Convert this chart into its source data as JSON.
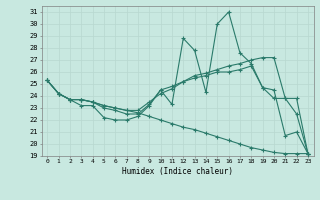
{
  "xlabel": "Humidex (Indice chaleur)",
  "ylabel": "",
  "xlim": [
    -0.5,
    23.5
  ],
  "ylim": [
    19,
    31.5
  ],
  "yticks": [
    19,
    20,
    21,
    22,
    23,
    24,
    25,
    26,
    27,
    28,
    29,
    30,
    31
  ],
  "xticks": [
    0,
    1,
    2,
    3,
    4,
    5,
    6,
    7,
    8,
    9,
    10,
    11,
    12,
    13,
    14,
    15,
    16,
    17,
    18,
    19,
    20,
    21,
    22,
    23
  ],
  "background_color": "#c8e8e0",
  "grid_color": "#b8d8d0",
  "line_color": "#2a7a6a",
  "lines": [
    {
      "x": [
        0,
        1,
        2,
        3,
        4,
        5,
        6,
        7,
        8,
        9,
        10,
        11,
        12,
        13,
        14,
        15,
        16,
        17,
        18,
        19,
        20,
        21,
        22,
        23
      ],
      "y": [
        25.3,
        24.2,
        23.7,
        23.2,
        23.2,
        22.2,
        22.0,
        22.0,
        22.3,
        23.2,
        24.5,
        23.3,
        28.8,
        27.8,
        24.3,
        30.0,
        31.0,
        27.6,
        26.7,
        24.7,
        24.5,
        20.7,
        21.0,
        19.2
      ]
    },
    {
      "x": [
        0,
        1,
        2,
        3,
        4,
        5,
        6,
        7,
        8,
        9,
        10,
        11,
        12,
        13,
        14,
        15,
        16,
        17,
        18,
        19,
        20,
        21,
        22,
        23
      ],
      "y": [
        25.3,
        24.2,
        23.7,
        23.7,
        23.5,
        23.2,
        23.0,
        22.8,
        22.8,
        23.5,
        24.2,
        24.6,
        25.2,
        25.7,
        25.9,
        26.2,
        26.5,
        26.7,
        27.0,
        27.2,
        27.2,
        23.8,
        22.5,
        19.2
      ]
    },
    {
      "x": [
        0,
        1,
        2,
        3,
        4,
        5,
        6,
        7,
        8,
        9,
        10,
        11,
        12,
        13,
        14,
        15,
        16,
        17,
        18,
        19,
        20,
        21,
        22,
        23
      ],
      "y": [
        25.3,
        24.2,
        23.7,
        23.7,
        23.5,
        23.2,
        23.0,
        22.8,
        22.6,
        22.3,
        22.0,
        21.7,
        21.4,
        21.2,
        20.9,
        20.6,
        20.3,
        20.0,
        19.7,
        19.5,
        19.3,
        19.2,
        19.2,
        19.2
      ]
    },
    {
      "x": [
        0,
        1,
        2,
        3,
        4,
        5,
        6,
        7,
        8,
        9,
        10,
        11,
        12,
        13,
        14,
        15,
        16,
        17,
        18,
        19,
        20,
        21,
        22,
        23
      ],
      "y": [
        25.3,
        24.2,
        23.7,
        23.7,
        23.5,
        23.0,
        22.8,
        22.5,
        22.5,
        23.3,
        24.5,
        24.8,
        25.2,
        25.5,
        25.7,
        26.0,
        26.0,
        26.2,
        26.5,
        24.7,
        23.8,
        23.8,
        23.8,
        19.2
      ]
    }
  ]
}
